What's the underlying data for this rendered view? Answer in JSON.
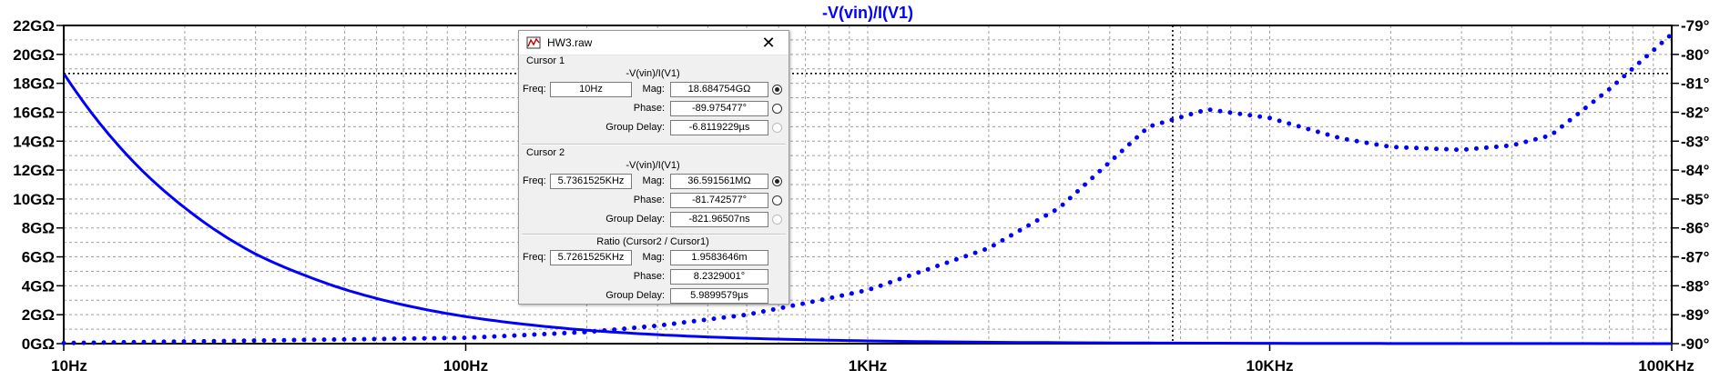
{
  "plot": {
    "trace_title": "-V(vin)/I(V1)",
    "left_axis_ticks": [
      "0GΩ",
      "2GΩ",
      "4GΩ",
      "6GΩ",
      "8GΩ",
      "10GΩ",
      "12GΩ",
      "14GΩ",
      "16GΩ",
      "18GΩ",
      "20GΩ",
      "22GΩ"
    ],
    "right_axis_ticks": [
      "-90°",
      "-89°",
      "-88°",
      "-87°",
      "-86°",
      "-85°",
      "-84°",
      "-83°",
      "-82°",
      "-81°",
      "-80°",
      "-79°"
    ],
    "x_axis_ticks": [
      "10Hz",
      "100Hz",
      "1KHz",
      "10KHz",
      "100KHz"
    ],
    "trace_color": "#0000ff"
  },
  "chart_data": {
    "type": "line",
    "title": "-V(vin)/I(V1)",
    "x_scale": "log",
    "xlim": [
      10,
      100000
    ],
    "y_left_range": [
      0,
      22
    ],
    "y_left_unit": "GΩ",
    "y_right_range": [
      -90,
      -79
    ],
    "y_right_unit": "°",
    "grid": true,
    "series": [
      {
        "name": "Mag",
        "style": "solid",
        "axis": "left",
        "x": [
          10,
          12,
          15,
          20,
          30,
          40,
          50,
          70,
          100,
          150,
          200,
          300,
          500,
          1000,
          5736,
          100000
        ],
        "values": [
          18.68,
          15.6,
          12.5,
          9.4,
          6.2,
          4.7,
          3.75,
          2.68,
          1.87,
          1.25,
          0.93,
          0.62,
          0.37,
          0.19,
          0.037,
          0.002
        ]
      },
      {
        "name": "Phase",
        "style": "dotted",
        "axis": "right",
        "x": [
          10,
          100,
          200,
          300,
          500,
          700,
          1000,
          2000,
          3000,
          5000,
          7000,
          10000,
          15000,
          20000,
          30000,
          40000,
          50000,
          70000,
          100000
        ],
        "values": [
          -89.98,
          -89.8,
          -89.6,
          -89.38,
          -89.0,
          -88.6,
          -88.15,
          -86.7,
          -85.3,
          -82.5,
          -81.9,
          -82.2,
          -82.9,
          -83.2,
          -83.3,
          -83.15,
          -82.8,
          -81.2,
          -79.3
        ]
      }
    ]
  },
  "dialog": {
    "title": "HW3.raw",
    "cursor1": {
      "label": "Cursor 1",
      "expr": "-V(vin)/I(V1)",
      "freq_label": "Freq:",
      "freq": "10Hz",
      "mag_label": "Mag:",
      "mag": "18.684754GΩ",
      "phase_label": "Phase:",
      "phase": "-89.975477°",
      "gd_label": "Group Delay:",
      "gd": "-6.8119229µs"
    },
    "cursor2": {
      "label": "Cursor 2",
      "expr": "-V(vin)/I(V1)",
      "freq_label": "Freq:",
      "freq": "5.7361525KHz",
      "mag_label": "Mag:",
      "mag": "36.591561MΩ",
      "phase_label": "Phase:",
      "phase": "-81.742577°",
      "gd_label": "Group Delay:",
      "gd": "-821.96507ns"
    },
    "ratio": {
      "label": "Ratio (Cursor2 / Cursor1)",
      "freq_label": "Freq:",
      "freq": "5.7261525KHz",
      "mag_label": "Mag:",
      "mag": "1.9583646m",
      "phase_label": "Phase:",
      "phase": "8.2329001°",
      "gd_label": "Group Delay:",
      "gd": "5.9899579µs"
    }
  }
}
